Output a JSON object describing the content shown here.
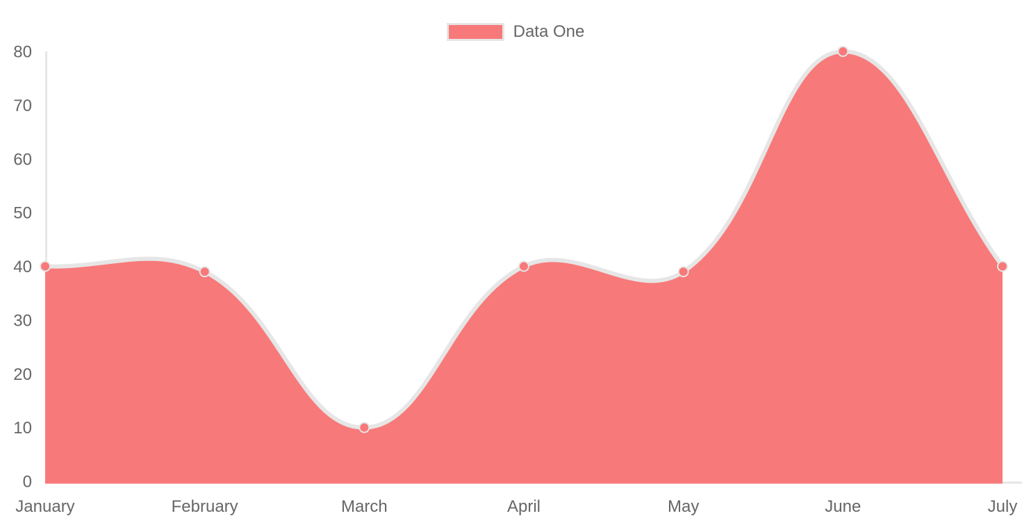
{
  "legend": {
    "items": [
      {
        "label": "Data One",
        "color": "#f87979"
      }
    ]
  },
  "chart_data": {
    "type": "area",
    "title": "",
    "xlabel": "",
    "ylabel": "",
    "categories": [
      "January",
      "February",
      "March",
      "April",
      "May",
      "June",
      "July"
    ],
    "series": [
      {
        "name": "Data One",
        "values": [
          40,
          39,
          10,
          40,
          39,
          80,
          40
        ],
        "fill_color": "#f87979",
        "line_color": "#e6e6e6",
        "point_color": "#f87979",
        "point_border_color": "#e6e6e6"
      }
    ],
    "ylim": [
      0,
      80
    ],
    "y_ticks": [
      0,
      10,
      20,
      30,
      40,
      50,
      60,
      70,
      80
    ],
    "grid": false,
    "legend_position": "top",
    "axis_color": "#e6e6e6",
    "tick_color": "#666666",
    "tick_font_size": 24,
    "curve_tension": 0.4
  }
}
